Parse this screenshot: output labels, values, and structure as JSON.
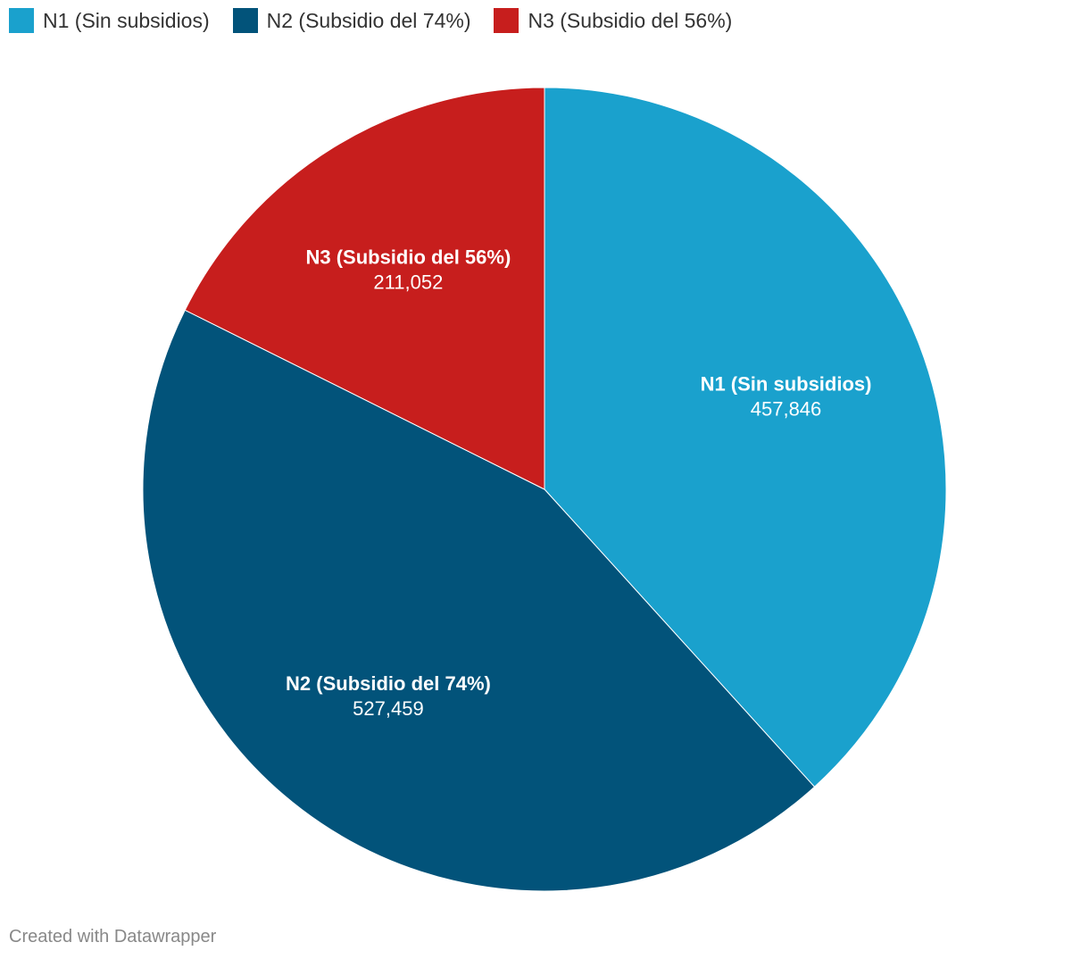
{
  "chart_data": {
    "type": "pie",
    "categories": [
      "N1 (Sin subsidios)",
      "N2 (Subsidio del 74%)",
      "N3 (Subsidio del 56%)"
    ],
    "values": [
      457846,
      527459,
      211052
    ],
    "value_labels": [
      "457,846",
      "527,459",
      "211,052"
    ],
    "colors": [
      "#1aa1cd",
      "#02537a",
      "#c71e1d"
    ],
    "legend_position": "top-left",
    "start_angle_deg": 0,
    "direction": "clockwise"
  },
  "legend": {
    "items": [
      {
        "label": "N1 (Sin subsidios)",
        "color": "#1aa1cd"
      },
      {
        "label": "N2 (Subsidio del 74%)",
        "color": "#02537a"
      },
      {
        "label": "N3 (Subsidio del 56%)",
        "color": "#c71e1d"
      }
    ]
  },
  "footer": {
    "credit": "Created with Datawrapper"
  }
}
